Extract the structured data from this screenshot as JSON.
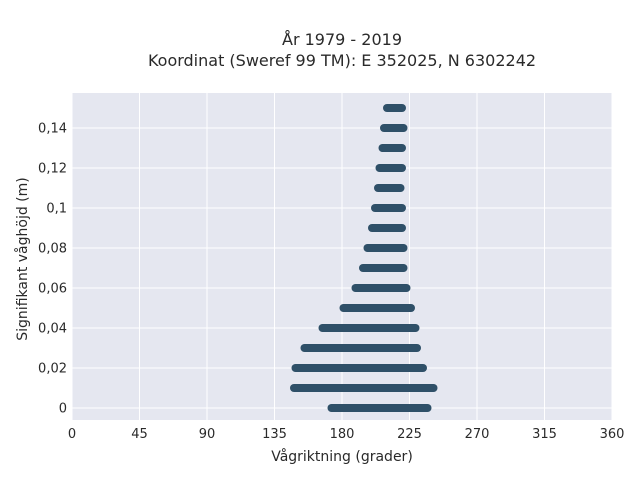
{
  "chart_data": {
    "type": "scatter",
    "title_line1": "År 1979 - 2019",
    "title_line2": "Koordinat (Sweref 99 TM): E 352025, N 6302242",
    "xlabel": "Vågriktning (grader)",
    "ylabel": "Signifikant våghöjd (m)",
    "xlim": [
      0,
      360
    ],
    "ylim": [
      -0.006,
      0.1575
    ],
    "xticks": [
      0,
      45,
      90,
      135,
      180,
      225,
      270,
      315,
      360
    ],
    "xtick_labels": [
      "0",
      "45",
      "90",
      "135",
      "180",
      "225",
      "270",
      "315",
      "360"
    ],
    "yticks": [
      0,
      0.02,
      0.04,
      0.06,
      0.08,
      0.1,
      0.12,
      0.14
    ],
    "ytick_labels": [
      "0",
      "0,02",
      "0,04",
      "0,06",
      "0,08",
      "0,1",
      "0,12",
      "0,14"
    ],
    "grid": true,
    "background": "#e5e7f0",
    "point_color": "#2f5068",
    "bands": [
      {
        "height": 0,
        "dir_min": 173,
        "dir_max": 237
      },
      {
        "height": 0.01,
        "dir_min": 148,
        "dir_max": 241
      },
      {
        "height": 0.02,
        "dir_min": 149,
        "dir_max": 234
      },
      {
        "height": 0.03,
        "dir_min": 155,
        "dir_max": 230
      },
      {
        "height": 0.04,
        "dir_min": 167,
        "dir_max": 229
      },
      {
        "height": 0.05,
        "dir_min": 181,
        "dir_max": 226
      },
      {
        "height": 0.06,
        "dir_min": 189,
        "dir_max": 223
      },
      {
        "height": 0.07,
        "dir_min": 194,
        "dir_max": 221
      },
      {
        "height": 0.08,
        "dir_min": 197,
        "dir_max": 221
      },
      {
        "height": 0.09,
        "dir_min": 200,
        "dir_max": 220
      },
      {
        "height": 0.1,
        "dir_min": 202,
        "dir_max": 220
      },
      {
        "height": 0.11,
        "dir_min": 204,
        "dir_max": 219
      },
      {
        "height": 0.12,
        "dir_min": 205,
        "dir_max": 220
      },
      {
        "height": 0.13,
        "dir_min": 207,
        "dir_max": 220
      },
      {
        "height": 0.14,
        "dir_min": 208,
        "dir_max": 221
      },
      {
        "height": 0.15,
        "dir_min": 210,
        "dir_max": 220
      }
    ]
  }
}
